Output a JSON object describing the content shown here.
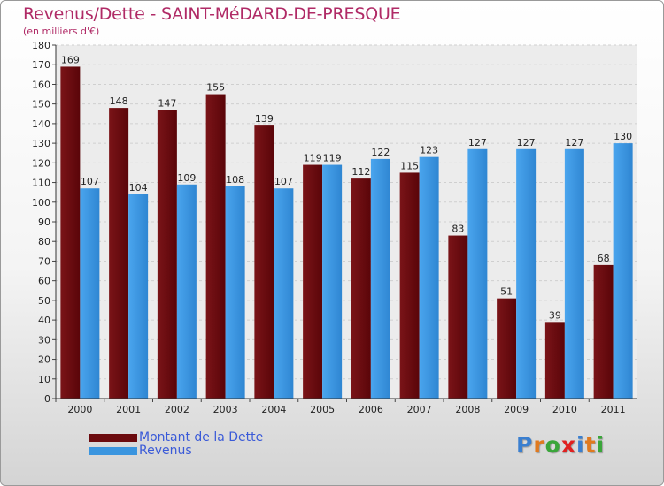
{
  "chart_data": {
    "type": "bar",
    "title": "Revenus/Dette - SAINT-MéDARD-DE-PRESQUE",
    "subtitle": "(en milliers d'€)",
    "categories": [
      "2000",
      "2001",
      "2002",
      "2003",
      "2004",
      "2005",
      "2006",
      "2007",
      "2008",
      "2009",
      "2010",
      "2011"
    ],
    "series": [
      {
        "name": "Montant de la Dette",
        "color": "#6b0a0e",
        "values": [
          169,
          148,
          147,
          155,
          139,
          119,
          112,
          115,
          83,
          51,
          39,
          68
        ]
      },
      {
        "name": "Revenus",
        "color": "#3a95df",
        "values": [
          107,
          104,
          109,
          108,
          107,
          119,
          122,
          123,
          127,
          127,
          127,
          130
        ]
      }
    ],
    "ylim": [
      0,
      180
    ],
    "ytick_step": 10,
    "grid": true,
    "legend_position": "bottom-left"
  },
  "logo": {
    "text": "Proxiti",
    "letter_colors": [
      "#3a7fd0",
      "#e07a1f",
      "#3aa63a",
      "#e02020",
      "#3a7fd0",
      "#e07a1f",
      "#3aa63a"
    ]
  }
}
